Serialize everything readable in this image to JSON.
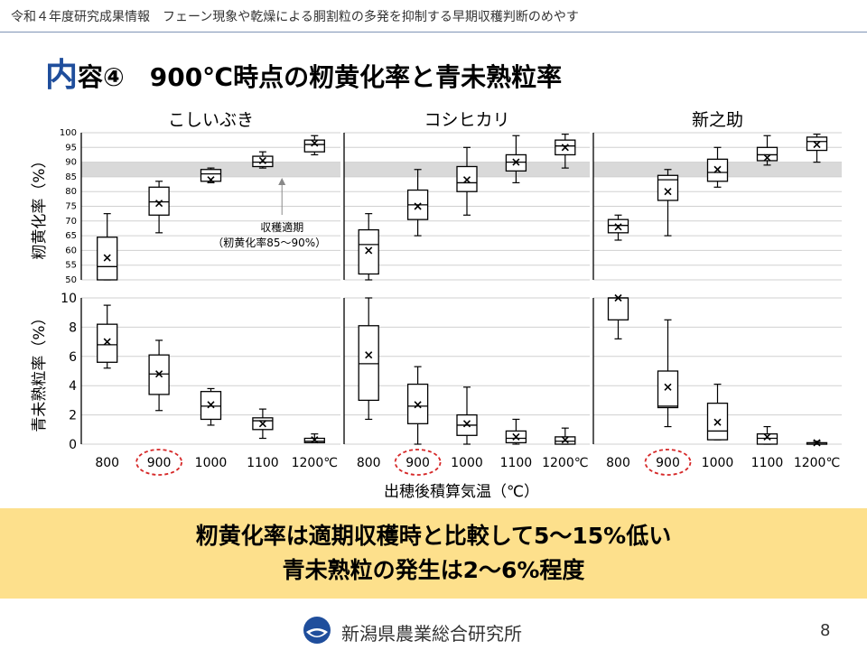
{
  "header": {
    "text": "令和４年度研究成果情報　フェーン現象や乾燥による胴割粒の多発を抑制する早期収穫判断のめやす"
  },
  "title": {
    "prefix": "内",
    "rest": "容④　900℃時点の籾黄化率と青未熟粒率"
  },
  "colors": {
    "title_accent": "#1f4e9c",
    "summary_bg": "#fde08c",
    "band": "#d9d9d9",
    "highlight_circle": "#d62828"
  },
  "chart_data": {
    "type": "boxplot",
    "categories": [
      "800",
      "900",
      "1000",
      "1100",
      "1200℃"
    ],
    "highlight_category": "900",
    "xlabel": "出穂後積算気温（℃）",
    "panels": [
      {
        "row": "top",
        "title": "こしいぶき",
        "ylabel": "籾黄化率（%）",
        "ylim": [
          50,
          100
        ],
        "yticks": [
          50,
          55,
          60,
          65,
          70,
          75,
          80,
          85,
          90,
          95,
          100
        ],
        "band": [
          85,
          90
        ],
        "annotation": {
          "line1": "収穫適期",
          "line2": "（籾黄化率85～90%）"
        },
        "boxes": [
          {
            "min": 50,
            "q1": 50,
            "median": 54.5,
            "q3": 64.5,
            "max": 72.5,
            "mean": 57.5
          },
          {
            "min": 66,
            "q1": 72,
            "median": 76.5,
            "q3": 81.5,
            "max": 83.5,
            "mean": 76
          },
          {
            "min": 83,
            "q1": 83.5,
            "median": 86,
            "q3": 87.5,
            "max": 88,
            "mean": 84
          },
          {
            "min": 88,
            "q1": 88.5,
            "median": 90,
            "q3": 92,
            "max": 93.5,
            "mean": 90.5
          },
          {
            "min": 92.5,
            "q1": 93.5,
            "median": 96,
            "q3": 97.5,
            "max": 99,
            "mean": 96.5
          }
        ]
      },
      {
        "row": "top",
        "title": "コシヒカリ",
        "ylim": [
          50,
          100
        ],
        "band": [
          85,
          90
        ],
        "boxes": [
          {
            "min": 50,
            "q1": 52,
            "median": 62,
            "q3": 67,
            "max": 72.5,
            "mean": 60
          },
          {
            "min": 65,
            "q1": 70.5,
            "median": 75.5,
            "q3": 80.5,
            "max": 87.5,
            "mean": 75
          },
          {
            "min": 72,
            "q1": 80,
            "median": 83,
            "q3": 88.5,
            "max": 95,
            "mean": 84
          },
          {
            "min": 83,
            "q1": 87,
            "median": 90,
            "q3": 92.5,
            "max": 99,
            "mean": 90
          },
          {
            "min": 88,
            "q1": 92.5,
            "median": 95.5,
            "q3": 97.5,
            "max": 99.5,
            "mean": 95
          }
        ]
      },
      {
        "row": "top",
        "title": "新之助",
        "ylim": [
          50,
          100
        ],
        "band": [
          85,
          90
        ],
        "boxes": [
          {
            "min": 63.5,
            "q1": 66,
            "median": 68.5,
            "q3": 70.5,
            "max": 72,
            "mean": 68
          },
          {
            "min": 65,
            "q1": 77,
            "median": 84,
            "q3": 85.5,
            "max": 87.5,
            "mean": 80
          },
          {
            "min": 81.5,
            "q1": 83.5,
            "median": 86.5,
            "q3": 91,
            "max": 95,
            "mean": 87.5
          },
          {
            "min": 89,
            "q1": 90.5,
            "median": 92.5,
            "q3": 95,
            "max": 99,
            "mean": 91.5
          },
          {
            "min": 90,
            "q1": 94,
            "median": 97,
            "q3": 98.5,
            "max": 99.5,
            "mean": 96
          }
        ]
      },
      {
        "row": "bottom",
        "ylabel": "青未熟粒率（%）",
        "ylim": [
          0,
          10
        ],
        "yticks": [
          0,
          2,
          4,
          6,
          8,
          10
        ],
        "boxes": [
          {
            "min": 5.2,
            "q1": 5.6,
            "median": 6.8,
            "q3": 8.2,
            "max": 9.5,
            "mean": 7
          },
          {
            "min": 2.3,
            "q1": 3.4,
            "median": 4.8,
            "q3": 6.1,
            "max": 7.1,
            "mean": 4.8
          },
          {
            "min": 1.3,
            "q1": 1.7,
            "median": 2.6,
            "q3": 3.6,
            "max": 3.8,
            "mean": 2.7
          },
          {
            "min": 0.4,
            "q1": 1,
            "median": 1.6,
            "q3": 1.8,
            "max": 2.4,
            "mean": 1.4
          },
          {
            "min": 0.1,
            "q1": 0.1,
            "median": 0.2,
            "q3": 0.4,
            "max": 0.7,
            "mean": 0.3
          }
        ]
      },
      {
        "row": "bottom",
        "ylim": [
          0,
          10
        ],
        "boxes": [
          {
            "min": 1.7,
            "q1": 3,
            "median": 5.5,
            "q3": 8.1,
            "max": 10,
            "mean": 6.1
          },
          {
            "min": 0,
            "q1": 1.4,
            "median": 2.6,
            "q3": 4.1,
            "max": 5.3,
            "mean": 2.7
          },
          {
            "min": 0,
            "q1": 0.6,
            "median": 1.3,
            "q3": 2,
            "max": 3.9,
            "mean": 1.4
          },
          {
            "min": 0,
            "q1": 0.1,
            "median": 0.4,
            "q3": 0.9,
            "max": 1.7,
            "mean": 0.5
          },
          {
            "min": 0,
            "q1": 0,
            "median": 0.2,
            "q3": 0.5,
            "max": 1.1,
            "mean": 0.3
          }
        ]
      },
      {
        "row": "bottom",
        "ylim": [
          0,
          10
        ],
        "boxes": [
          {
            "min": 7.2,
            "q1": 8.5,
            "median": 10,
            "q3": 10,
            "max": 10,
            "mean": 10
          },
          {
            "min": 1.2,
            "q1": 2.5,
            "median": 2.6,
            "q3": 5,
            "max": 8.5,
            "mean": 3.9
          },
          {
            "min": 0.3,
            "q1": 0.3,
            "median": 0.9,
            "q3": 2.8,
            "max": 4.1,
            "mean": 1.5
          },
          {
            "min": 0,
            "q1": 0,
            "median": 0.4,
            "q3": 0.7,
            "max": 1.2,
            "mean": 0.5
          },
          {
            "min": 0,
            "q1": 0,
            "median": 0,
            "q3": 0.1,
            "max": 0.2,
            "mean": 0.1
          }
        ]
      }
    ]
  },
  "summary": {
    "line1": "籾黄化率は適期収穫時と比較して5～15%低い",
    "line2": "青未熟粒の発生は2～6%程度"
  },
  "footer": {
    "org": "新潟県農業総合研究所",
    "page": "8"
  }
}
